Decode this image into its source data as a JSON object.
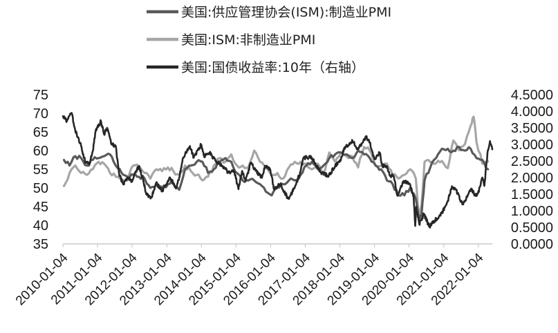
{
  "chart_data": {
    "type": "line",
    "title": "",
    "xlabel": "",
    "ylabel": "",
    "y2label": "",
    "x_range": [
      "2010-01-04",
      "2022-05-31"
    ],
    "ylim": [
      35,
      75
    ],
    "y_ticks": [
      "75",
      "70",
      "65",
      "60",
      "55",
      "50",
      "45",
      "40",
      "35"
    ],
    "y2lim": [
      0,
      4.5
    ],
    "y2_ticks": [
      "4.5000",
      "4.0000",
      "3.5000",
      "3.0000",
      "2.5000",
      "2.0000",
      "1.5000",
      "1.0000",
      "0.5000",
      "0.0000"
    ],
    "x_ticks": [
      "2010-01-04",
      "2011-01-04",
      "2012-01-04",
      "2013-01-04",
      "2014-01-04",
      "2015-01-04",
      "2016-01-04",
      "2017-01-04",
      "2018-01-04",
      "2019-01-04",
      "2020-01-04",
      "2021-01-04",
      "2022-01-04"
    ],
    "legend_position": "top-center",
    "grid": false,
    "series": [
      {
        "name": "美国:供应管理协会(ISM):制造业PMI",
        "axis": "left",
        "color": "#595959",
        "points": [
          [
            "2010-01",
            57.5
          ],
          [
            "2010-03",
            56
          ],
          [
            "2010-05",
            58.5
          ],
          [
            "2010-07",
            58
          ],
          [
            "2010-09",
            56
          ],
          [
            "2010-11",
            57.5
          ],
          [
            "2011-01",
            58
          ],
          [
            "2011-03",
            58.5
          ],
          [
            "2011-05",
            59
          ],
          [
            "2011-07",
            56
          ],
          [
            "2011-09",
            54
          ],
          [
            "2011-11",
            53
          ],
          [
            "2012-01",
            53.5
          ],
          [
            "2012-03",
            53
          ],
          [
            "2012-05",
            52.5
          ],
          [
            "2012-07",
            50
          ],
          [
            "2012-09",
            51
          ],
          [
            "2012-11",
            50
          ],
          [
            "2013-01",
            51
          ],
          [
            "2013-03",
            51
          ],
          [
            "2013-05",
            49.5
          ],
          [
            "2013-07",
            55
          ],
          [
            "2013-09",
            56
          ],
          [
            "2013-11",
            57
          ],
          [
            "2014-01",
            57
          ],
          [
            "2014-03",
            54
          ],
          [
            "2014-05",
            55
          ],
          [
            "2014-07",
            57
          ],
          [
            "2014-09",
            58
          ],
          [
            "2014-11",
            57
          ],
          [
            "2015-01",
            54
          ],
          [
            "2015-03",
            52
          ],
          [
            "2015-05",
            52
          ],
          [
            "2015-07",
            52
          ],
          [
            "2015-09",
            51
          ],
          [
            "2015-11",
            49
          ],
          [
            "2016-01",
            48
          ],
          [
            "2016-03",
            50
          ],
          [
            "2016-05",
            51
          ],
          [
            "2016-07",
            52
          ],
          [
            "2016-09",
            52
          ],
          [
            "2016-11",
            53.5
          ],
          [
            "2017-01",
            56
          ],
          [
            "2017-03",
            57
          ],
          [
            "2017-05",
            55
          ],
          [
            "2017-07",
            56
          ],
          [
            "2017-09",
            58
          ],
          [
            "2017-11",
            59
          ],
          [
            "2018-01",
            59.5
          ],
          [
            "2018-03",
            59
          ],
          [
            "2018-05",
            58
          ],
          [
            "2018-07",
            60
          ],
          [
            "2018-09",
            59
          ],
          [
            "2018-11",
            58
          ],
          [
            "2019-01",
            56
          ],
          [
            "2019-03",
            55
          ],
          [
            "2019-05",
            52
          ],
          [
            "2019-07",
            51
          ],
          [
            "2019-09",
            48
          ],
          [
            "2019-11",
            48
          ],
          [
            "2020-01",
            50
          ],
          [
            "2020-03",
            47
          ],
          [
            "2020-04",
            41.5
          ],
          [
            "2020-05",
            43
          ],
          [
            "2020-06",
            52
          ],
          [
            "2020-08",
            55.5
          ],
          [
            "2020-10",
            58
          ],
          [
            "2020-12",
            60.5
          ],
          [
            "2021-02",
            60.5
          ],
          [
            "2021-04",
            60
          ],
          [
            "2021-06",
            61
          ],
          [
            "2021-08",
            60
          ],
          [
            "2021-10",
            60.5
          ],
          [
            "2021-12",
            58
          ],
          [
            "2022-02",
            57.5
          ],
          [
            "2022-04",
            55
          ]
        ]
      },
      {
        "name": "美国:ISM:非制造业PMI",
        "axis": "left",
        "color": "#a6a6a6",
        "points": [
          [
            "2010-01",
            50.5
          ],
          [
            "2010-03",
            54
          ],
          [
            "2010-05",
            56
          ],
          [
            "2010-07",
            54
          ],
          [
            "2010-09",
            53.5
          ],
          [
            "2010-11",
            55
          ],
          [
            "2011-01",
            57
          ],
          [
            "2011-03",
            56.5
          ],
          [
            "2011-05",
            54
          ],
          [
            "2011-07",
            53
          ],
          [
            "2011-09",
            52.5
          ],
          [
            "2011-11",
            52
          ],
          [
            "2012-01",
            56
          ],
          [
            "2012-03",
            55.5
          ],
          [
            "2012-05",
            54
          ],
          [
            "2012-07",
            52.5
          ],
          [
            "2012-09",
            55
          ],
          [
            "2012-11",
            54.5
          ],
          [
            "2013-01",
            55.5
          ],
          [
            "2013-03",
            54.5
          ],
          [
            "2013-05",
            53.5
          ],
          [
            "2013-07",
            56
          ],
          [
            "2013-09",
            54.5
          ],
          [
            "2013-11",
            53.5
          ],
          [
            "2014-01",
            52
          ],
          [
            "2014-03",
            53
          ],
          [
            "2014-05",
            56
          ],
          [
            "2014-07",
            58
          ],
          [
            "2014-09",
            57
          ],
          [
            "2014-11",
            59
          ],
          [
            "2015-01",
            56
          ],
          [
            "2015-03",
            56
          ],
          [
            "2015-05",
            55.5
          ],
          [
            "2015-07",
            60
          ],
          [
            "2015-09",
            57
          ],
          [
            "2015-11",
            55.5
          ],
          [
            "2016-01",
            53.5
          ],
          [
            "2016-03",
            54
          ],
          [
            "2016-05",
            52.5
          ],
          [
            "2016-07",
            55.5
          ],
          [
            "2016-09",
            57
          ],
          [
            "2016-11",
            57
          ],
          [
            "2017-01",
            56.5
          ],
          [
            "2017-03",
            55
          ],
          [
            "2017-05",
            56.5
          ],
          [
            "2017-07",
            53.5
          ],
          [
            "2017-09",
            59.5
          ],
          [
            "2017-11",
            57
          ],
          [
            "2018-01",
            59.5
          ],
          [
            "2018-03",
            58.5
          ],
          [
            "2018-05",
            58.5
          ],
          [
            "2018-07",
            55.5
          ],
          [
            "2018-09",
            61
          ],
          [
            "2018-11",
            60
          ],
          [
            "2019-01",
            56
          ],
          [
            "2019-03",
            56
          ],
          [
            "2019-05",
            56.5
          ],
          [
            "2019-07",
            53.5
          ],
          [
            "2019-09",
            52.5
          ],
          [
            "2019-11",
            53.5
          ],
          [
            "2020-01",
            55
          ],
          [
            "2020-03",
            52.5
          ],
          [
            "2020-04",
            41.8
          ],
          [
            "2020-05",
            45.4
          ],
          [
            "2020-06",
            57
          ],
          [
            "2020-08",
            56.9
          ],
          [
            "2020-10",
            56.6
          ],
          [
            "2020-12",
            57.2
          ],
          [
            "2021-02",
            55.3
          ],
          [
            "2021-04",
            62.7
          ],
          [
            "2021-06",
            60.1
          ],
          [
            "2021-08",
            61.7
          ],
          [
            "2021-10",
            66.7
          ],
          [
            "2021-11",
            69.1
          ],
          [
            "2021-12",
            62.3
          ],
          [
            "2022-02",
            56.5
          ],
          [
            "2022-04",
            57.1
          ]
        ]
      },
      {
        "name": "美国:国债收益率:10年（右轴）",
        "axis": "right",
        "color": "#262626",
        "points": [
          [
            "2010-01-04",
            3.85
          ],
          [
            "2010-02-15",
            3.7
          ],
          [
            "2010-04-05",
            3.95
          ],
          [
            "2010-05-15",
            3.4
          ],
          [
            "2010-06-15",
            3.2
          ],
          [
            "2010-07-15",
            2.95
          ],
          [
            "2010-08-25",
            2.5
          ],
          [
            "2010-10-10",
            2.4
          ],
          [
            "2010-11-15",
            2.8
          ],
          [
            "2010-12-15",
            3.4
          ],
          [
            "2011-02-10",
            3.7
          ],
          [
            "2011-03-15",
            3.3
          ],
          [
            "2011-04-15",
            3.5
          ],
          [
            "2011-06-01",
            3.0
          ],
          [
            "2011-07-15",
            2.95
          ],
          [
            "2011-08-20",
            2.1
          ],
          [
            "2011-10-01",
            1.8
          ],
          [
            "2011-11-15",
            2.0
          ],
          [
            "2011-12-31",
            1.9
          ],
          [
            "2012-03-15",
            2.35
          ],
          [
            "2012-05-01",
            1.9
          ],
          [
            "2012-06-01",
            1.5
          ],
          [
            "2012-07-25",
            1.4
          ],
          [
            "2012-09-15",
            1.85
          ],
          [
            "2012-11-15",
            1.6
          ],
          [
            "2012-12-31",
            1.8
          ],
          [
            "2013-02-01",
            2.0
          ],
          [
            "2013-04-15",
            1.7
          ],
          [
            "2013-05-15",
            2.0
          ],
          [
            "2013-06-25",
            2.6
          ],
          [
            "2013-09-05",
            2.95
          ],
          [
            "2013-10-15",
            2.6
          ],
          [
            "2013-12-31",
            3.0
          ],
          [
            "2014-02-01",
            2.65
          ],
          [
            "2014-04-01",
            2.75
          ],
          [
            "2014-06-01",
            2.5
          ],
          [
            "2014-08-15",
            2.35
          ],
          [
            "2014-10-15",
            2.15
          ],
          [
            "2014-12-15",
            2.2
          ],
          [
            "2015-01-30",
            1.65
          ],
          [
            "2015-03-10",
            2.2
          ],
          [
            "2015-04-15",
            1.9
          ],
          [
            "2015-06-10",
            2.45
          ],
          [
            "2015-08-01",
            2.2
          ],
          [
            "2015-10-01",
            2.0
          ],
          [
            "2015-11-10",
            2.35
          ],
          [
            "2015-12-31",
            2.25
          ],
          [
            "2016-02-10",
            1.65
          ],
          [
            "2016-04-15",
            1.8
          ],
          [
            "2016-07-08",
            1.36
          ],
          [
            "2016-09-15",
            1.7
          ],
          [
            "2016-11-10",
            2.15
          ],
          [
            "2016-12-15",
            2.6
          ],
          [
            "2017-03-15",
            2.6
          ],
          [
            "2017-06-15",
            2.15
          ],
          [
            "2017-09-08",
            2.05
          ],
          [
            "2017-11-15",
            2.35
          ],
          [
            "2018-01-15",
            2.55
          ],
          [
            "2018-02-20",
            2.9
          ],
          [
            "2018-05-17",
            3.1
          ],
          [
            "2018-07-15",
            2.85
          ],
          [
            "2018-10-08",
            3.23
          ],
          [
            "2018-11-15",
            3.05
          ],
          [
            "2019-01-03",
            2.55
          ],
          [
            "2019-03-01",
            2.75
          ],
          [
            "2019-03-28",
            2.35
          ],
          [
            "2019-05-15",
            2.35
          ],
          [
            "2019-06-15",
            2.05
          ],
          [
            "2019-07-25",
            2.05
          ],
          [
            "2019-09-03",
            1.45
          ],
          [
            "2019-10-15",
            1.75
          ],
          [
            "2019-11-15",
            1.9
          ],
          [
            "2020-01-15",
            1.8
          ],
          [
            "2020-02-20",
            1.45
          ],
          [
            "2020-03-09",
            0.54
          ],
          [
            "2020-03-19",
            1.12
          ],
          [
            "2020-04-20",
            0.6
          ],
          [
            "2020-06-08",
            0.9
          ],
          [
            "2020-08-04",
            0.52
          ],
          [
            "2020-10-15",
            0.75
          ],
          [
            "2020-12-15",
            0.92
          ],
          [
            "2021-01-15",
            1.1
          ],
          [
            "2021-02-15",
            1.3
          ],
          [
            "2021-03-31",
            1.74
          ],
          [
            "2021-05-15",
            1.62
          ],
          [
            "2021-07-19",
            1.19
          ],
          [
            "2021-08-15",
            1.3
          ],
          [
            "2021-10-20",
            1.67
          ],
          [
            "2021-12-01",
            1.45
          ],
          [
            "2021-12-31",
            1.52
          ],
          [
            "2022-02-15",
            2.0
          ],
          [
            "2022-03-08",
            1.75
          ],
          [
            "2022-04-10",
            2.75
          ],
          [
            "2022-05-06",
            3.1
          ],
          [
            "2022-05-31",
            2.85
          ]
        ]
      }
    ]
  }
}
